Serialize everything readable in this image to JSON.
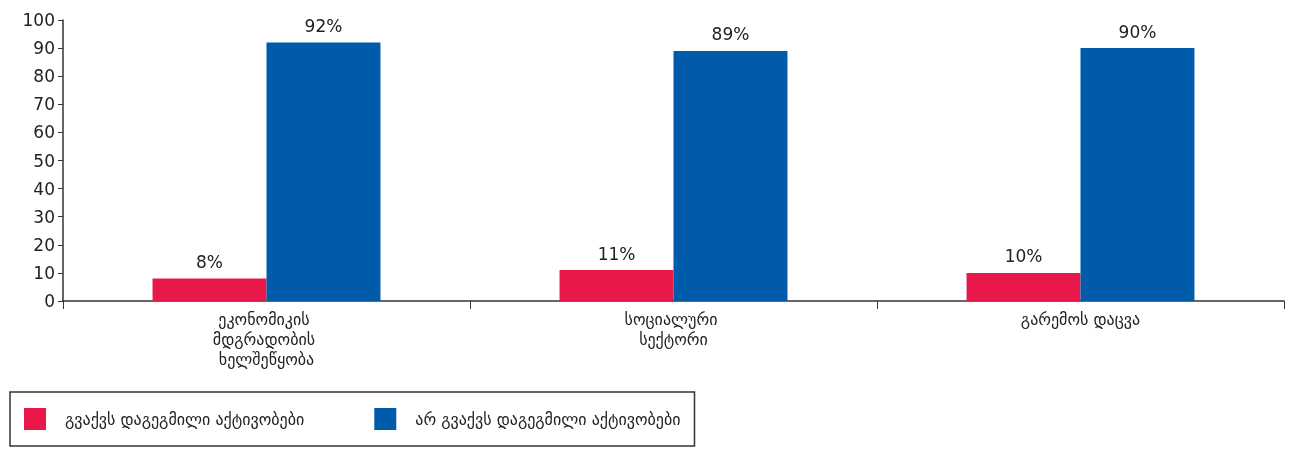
{
  "chart_data": {
    "type": "bar",
    "categories": [
      "ეკონომიკის მდგრადობის ხელშეწყობა",
      "სოციალური სექტორი",
      "გარემოს დაცვა"
    ],
    "series": [
      {
        "name": "გვაქვს დაგეგმილი აქტივობები",
        "color": "#e8194a",
        "values": [
          8,
          11,
          10
        ],
        "value_labels": [
          "8%",
          "11%",
          "10%"
        ]
      },
      {
        "name": "არ გვაქვს დაგეგმილი აქტივობები",
        "color": "#005baa",
        "values": [
          92,
          89,
          90
        ],
        "value_labels": [
          "92%",
          "89%",
          "90%"
        ]
      }
    ],
    "ylim": [
      0,
      100
    ],
    "yticks": [
      0,
      10,
      20,
      30,
      40,
      50,
      60,
      70,
      80,
      90,
      100
    ],
    "grid": false,
    "legend": "bottom left"
  }
}
